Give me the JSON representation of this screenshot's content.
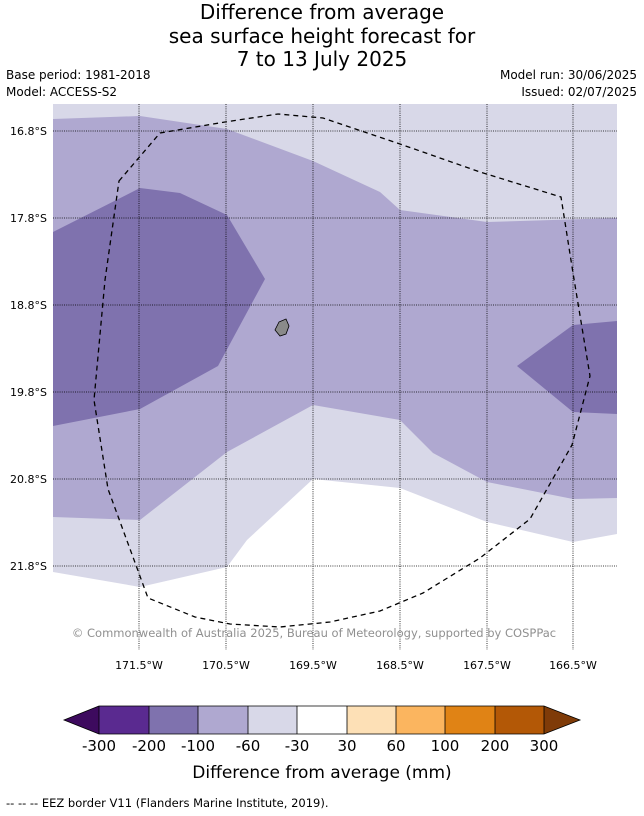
{
  "title": {
    "line1": "Difference from average",
    "line2": "sea surface height forecast for",
    "line3": "7 to 13 July 2025"
  },
  "meta": {
    "base_period": "Base period: 1981-2018",
    "model": "Model: ACCESS-S2",
    "model_run": "Model run: 30/06/2025",
    "issued": "Issued: 02/07/2025"
  },
  "map": {
    "lat_labels": [
      "16.8°S",
      "17.8°S",
      "18.8°S",
      "19.8°S",
      "20.8°S",
      "21.8°S"
    ],
    "lon_labels": [
      "171.5°W",
      "170.5°W",
      "169.5°W",
      "168.5°W",
      "167.5°W",
      "166.5°W"
    ],
    "copyright": "© Commonwealth of Australia 2025, Bureau of Meteorology, supported by COSPPac",
    "colors": {
      "band_minus_60_to_minus_30": "#d8d8e8",
      "band_minus_100_to_minus_60": "#afa8d0",
      "band_minus_200_to_minus_100": "#7f72ae",
      "band_minus_30_to_30": "#ffffff",
      "land": "#8a8a8a"
    }
  },
  "colorbar": {
    "ticks": [
      "-300",
      "-200",
      "-100",
      "-60",
      "-30",
      "30",
      "60",
      "100",
      "200",
      "300"
    ],
    "colors": [
      "#3d0a5e",
      "#5a2a90",
      "#7f72ae",
      "#afa8d0",
      "#d8d8e8",
      "#ffffff",
      "#fde0b6",
      "#fbb55f",
      "#e08315",
      "#b35806",
      "#7f3b08"
    ],
    "label": "Difference from average (mm)"
  },
  "footnote": "--  --  -- EEZ border V11 (Flanders Marine Institute, 2019)."
}
